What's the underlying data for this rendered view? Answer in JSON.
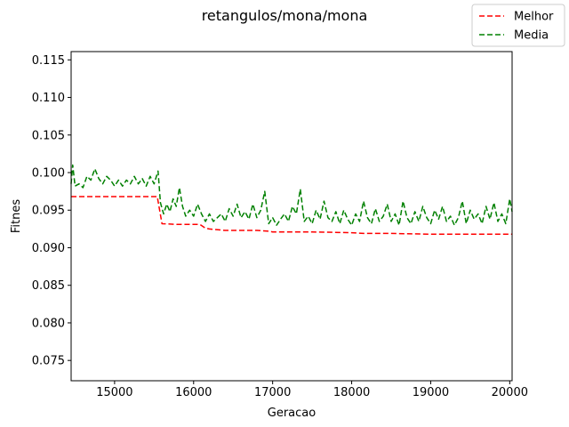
{
  "chart_data": {
    "type": "line",
    "title": "retangulos/mona/mona",
    "xlabel": "Geracao",
    "ylabel": "Fitnes",
    "xlim": [
      14450,
      20030
    ],
    "ylim": [
      0.0723,
      0.1161
    ],
    "xticks": [
      15000,
      16000,
      17000,
      18000,
      19000,
      20000
    ],
    "xtick_labels": [
      "15000",
      "16000",
      "17000",
      "18000",
      "19000",
      "20000"
    ],
    "yticks": [
      0.075,
      0.08,
      0.085,
      0.09,
      0.095,
      0.1,
      0.105,
      0.11,
      0.115
    ],
    "ytick_labels": [
      "0.075",
      "0.080",
      "0.085",
      "0.090",
      "0.095",
      "0.100",
      "0.105",
      "0.110",
      "0.115"
    ],
    "grid": false,
    "legend_position": "top-right",
    "series": [
      {
        "name": "Melhor",
        "color": "#ff0000",
        "dash": "dashed",
        "x": [
          14450,
          15540,
          15600,
          15800,
          16080,
          16150,
          16200,
          16400,
          16800,
          16950,
          17000,
          17500,
          18000,
          18150,
          18500,
          19000,
          19500,
          20030
        ],
        "y": [
          0.0968,
          0.0968,
          0.0932,
          0.0931,
          0.0931,
          0.0926,
          0.0925,
          0.0923,
          0.0923,
          0.0922,
          0.0921,
          0.0921,
          0.092,
          0.0919,
          0.0919,
          0.0918,
          0.0918,
          0.0918
        ]
      },
      {
        "name": "Media",
        "color": "#008000",
        "dash": "dashed",
        "x": [
          14450,
          14470,
          14500,
          14550,
          14600,
          14650,
          14700,
          14750,
          14800,
          14850,
          14900,
          14950,
          15000,
          15050,
          15100,
          15150,
          15200,
          15250,
          15300,
          15350,
          15400,
          15450,
          15500,
          15550,
          15580,
          15620,
          15660,
          15700,
          15740,
          15780,
          15820,
          15860,
          15900,
          15950,
          16000,
          16050,
          16100,
          16150,
          16200,
          16250,
          16300,
          16350,
          16400,
          16450,
          16500,
          16550,
          16600,
          16650,
          16700,
          16750,
          16800,
          16850,
          16900,
          16950,
          17000,
          17050,
          17100,
          17150,
          17200,
          17250,
          17300,
          17350,
          17400,
          17450,
          17500,
          17550,
          17600,
          17650,
          17700,
          17750,
          17800,
          17850,
          17900,
          17950,
          18000,
          18050,
          18100,
          18150,
          18200,
          18250,
          18300,
          18350,
          18400,
          18450,
          18500,
          18550,
          18600,
          18650,
          18700,
          18750,
          18800,
          18850,
          18900,
          18950,
          19000,
          19050,
          19100,
          19150,
          19200,
          19250,
          19300,
          19350,
          19400,
          19450,
          19500,
          19550,
          19600,
          19650,
          19700,
          19750,
          19800,
          19850,
          19900,
          19950,
          20000,
          20030
        ],
        "y": [
          0.0985,
          0.101,
          0.0982,
          0.0985,
          0.098,
          0.0995,
          0.099,
          0.1005,
          0.0992,
          0.0985,
          0.0995,
          0.099,
          0.0982,
          0.099,
          0.0982,
          0.099,
          0.0985,
          0.0995,
          0.0985,
          0.0992,
          0.0982,
          0.0995,
          0.0985,
          0.1002,
          0.096,
          0.0945,
          0.0958,
          0.0948,
          0.0965,
          0.0955,
          0.098,
          0.0955,
          0.0942,
          0.095,
          0.0942,
          0.0958,
          0.0945,
          0.0935,
          0.0945,
          0.0935,
          0.094,
          0.0945,
          0.0935,
          0.0952,
          0.0942,
          0.0958,
          0.094,
          0.0948,
          0.0938,
          0.0958,
          0.094,
          0.095,
          0.0975,
          0.0932,
          0.094,
          0.093,
          0.0938,
          0.0945,
          0.0935,
          0.0955,
          0.0945,
          0.0978,
          0.0935,
          0.0942,
          0.0932,
          0.095,
          0.0938,
          0.0962,
          0.094,
          0.0935,
          0.0948,
          0.0932,
          0.095,
          0.0938,
          0.093,
          0.0945,
          0.0935,
          0.0962,
          0.094,
          0.0932,
          0.0952,
          0.0935,
          0.0942,
          0.0958,
          0.0935,
          0.0945,
          0.093,
          0.0962,
          0.094,
          0.0932,
          0.0948,
          0.0935,
          0.0955,
          0.094,
          0.0932,
          0.095,
          0.0938,
          0.0955,
          0.0935,
          0.0942,
          0.093,
          0.094,
          0.0962,
          0.0932,
          0.095,
          0.0938,
          0.0945,
          0.0932,
          0.0955,
          0.0938,
          0.096,
          0.0935,
          0.0945,
          0.0932,
          0.0965,
          0.0948
        ]
      }
    ]
  }
}
